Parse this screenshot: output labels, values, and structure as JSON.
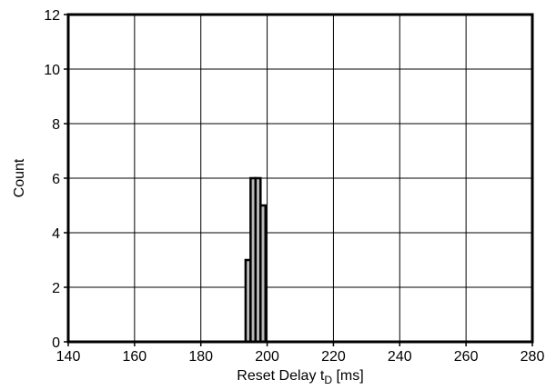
{
  "chart_data": {
    "type": "bar",
    "title": "",
    "xlabel": {
      "main": "Reset Delay t",
      "subscript": "D",
      "suffix": " [ms]"
    },
    "ylabel": "Count",
    "xlim": [
      140,
      280
    ],
    "ylim": [
      0,
      12
    ],
    "x_ticks": [
      "140",
      "160",
      "180",
      "200",
      "220",
      "240",
      "260",
      "280"
    ],
    "y_ticks": [
      "0",
      "2",
      "4",
      "6",
      "8",
      "10",
      "12"
    ],
    "grid": true,
    "bin_width": 1.5,
    "x": [
      194.25,
      195.75,
      197.25,
      198.75
    ],
    "values": [
      3,
      6,
      6,
      5
    ],
    "colors": {
      "bar_fill": "#b8b8b8",
      "bar_edge": "#000000",
      "grid": "#000000",
      "frame": "#000000"
    }
  }
}
